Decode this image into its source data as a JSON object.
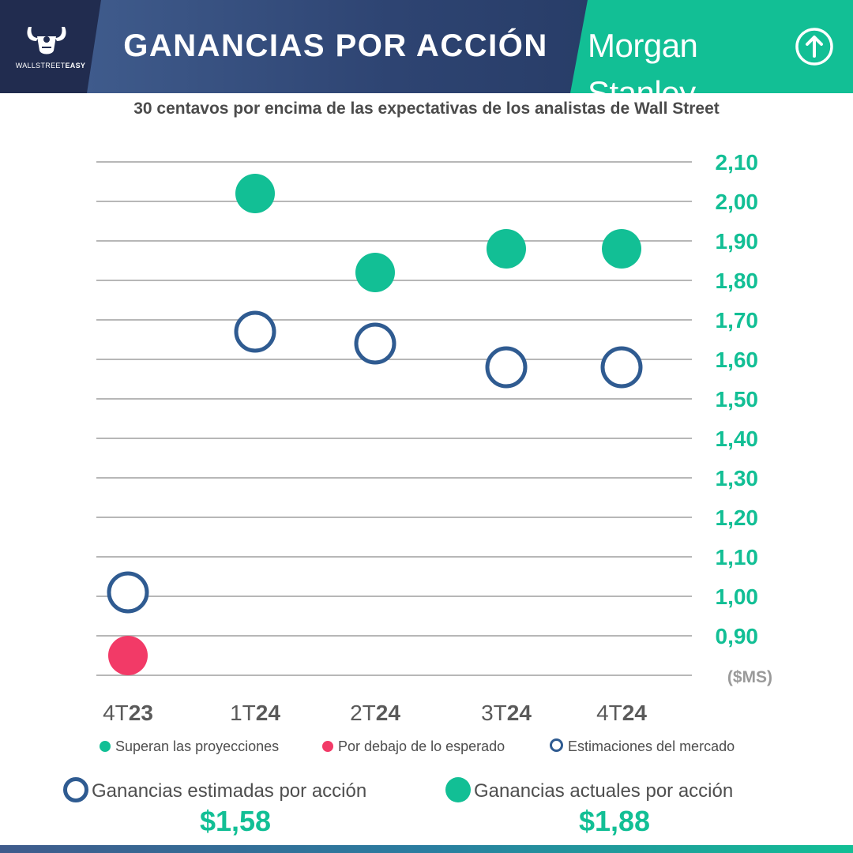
{
  "header": {
    "logo_text_regular": "WALLSTREET",
    "logo_text_bold": "EASY",
    "title": "GANANCIAS POR ACCIÓN",
    "brand": "Morgan Stanley",
    "brand_icon": "up-arrow-circle-icon"
  },
  "colors": {
    "beat": "#12bf95",
    "miss": "#f23a67",
    "estimate": "#2f5b91",
    "grid": "#b7b7b7",
    "axis_text": "#12bf95",
    "header_dark": "#212c4f",
    "header_blue": "#35507f",
    "header_green": "#12bf95"
  },
  "chart_data": {
    "type": "scatter",
    "title": "30 centavos por encima de las expectativas de los analistas de Wall Street",
    "categories": [
      "4T23",
      "1T24",
      "2T24",
      "3T24",
      "4T24"
    ],
    "category_labels": [
      {
        "prefix": "4T",
        "suffix": "23"
      },
      {
        "prefix": "1T",
        "suffix": "24"
      },
      {
        "prefix": "2T",
        "suffix": "24"
      },
      {
        "prefix": "3T",
        "suffix": "24"
      },
      {
        "prefix": "4T",
        "suffix": "24"
      }
    ],
    "y_unit_label": "($MS)",
    "ylim": [
      0.8,
      2.1
    ],
    "y_ticks": [
      2.1,
      2.0,
      1.9,
      1.8,
      1.7,
      1.6,
      1.5,
      1.4,
      1.3,
      1.2,
      1.1,
      1.0,
      0.9
    ],
    "y_tick_labels": [
      "2,10",
      "2,00",
      "1,90",
      "1,80",
      "1,70",
      "1,60",
      "1,50",
      "1,40",
      "1,30",
      "1,20",
      "1,10",
      "1,00",
      "0,90"
    ],
    "grid": true,
    "series": [
      {
        "name": "Estimaciones del mercado",
        "style": "hollow",
        "values": [
          1.01,
          1.67,
          1.64,
          1.58,
          1.58
        ]
      },
      {
        "name": "Ganancias actuales",
        "style": "filled",
        "values": [
          0.85,
          2.02,
          1.82,
          1.88,
          1.88
        ],
        "status": [
          "miss",
          "beat",
          "beat",
          "beat",
          "beat"
        ]
      }
    ],
    "legend": [
      {
        "label": "Superan las proyecciones",
        "kind": "beat"
      },
      {
        "label": "Por debajo de lo esperado",
        "kind": "miss"
      },
      {
        "label": "Estimaciones del mercado",
        "kind": "estimate"
      }
    ]
  },
  "summary": {
    "estimated_label": "Ganancias estimadas por acción",
    "estimated_value": "$1,58",
    "actual_label": "Ganancias actuales por acción",
    "actual_value": "$1,88"
  }
}
